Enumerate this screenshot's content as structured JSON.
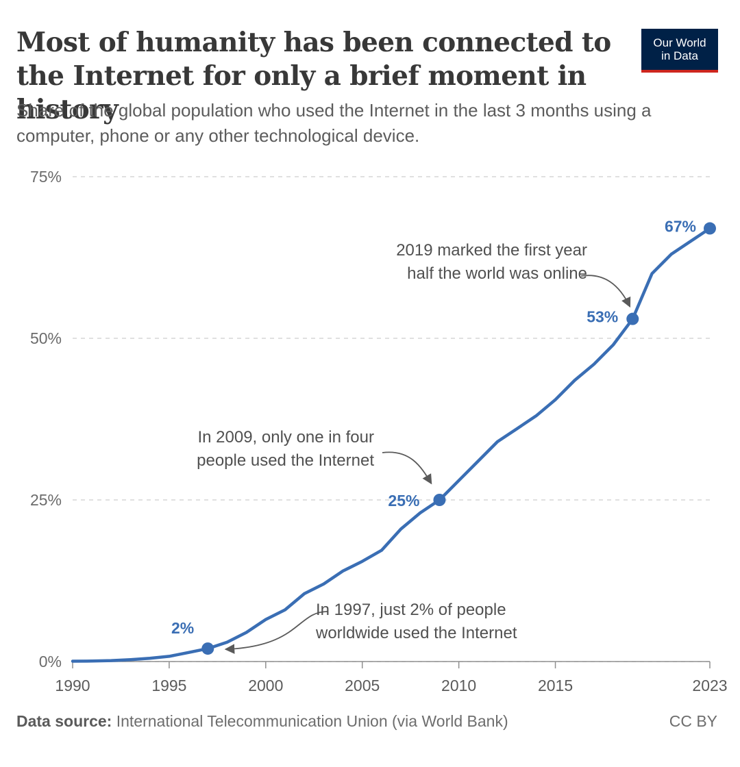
{
  "header": {
    "title": "Most of humanity has been connected to the Internet for only a brief moment in history",
    "subtitle": "Share of the global population who used the Internet in the last 3 months using a computer, phone or any other technological device.",
    "logo_line1": "Our World",
    "logo_line2": "in Data"
  },
  "footer": {
    "source_label": "Data source:",
    "source_text": "International Telecommunication Union (via World Bank)",
    "license": "CC BY"
  },
  "colors": {
    "series": "#3a6eb4",
    "annotation": "#5a5a5a",
    "grid": "#d5d5d5",
    "logo_bg": "#002147",
    "logo_accent": "#ce261e"
  },
  "chart_data": {
    "type": "line",
    "title": "Most of humanity has been connected to the Internet for only a brief moment in history",
    "subtitle": "Share of the global population who used the Internet in the last 3 months using a computer, phone or any other technological device.",
    "xlabel": "",
    "ylabel": "",
    "xlim": [
      1990,
      2023
    ],
    "ylim": [
      0,
      75
    ],
    "grid": "horizontal dashed",
    "legend": "none",
    "y_ticks": [
      {
        "value": 0,
        "label": "0%"
      },
      {
        "value": 25,
        "label": "25%"
      },
      {
        "value": 50,
        "label": "50%"
      },
      {
        "value": 75,
        "label": "75%"
      }
    ],
    "x_ticks": [
      {
        "value": 1990,
        "label": "1990"
      },
      {
        "value": 1995,
        "label": "1995"
      },
      {
        "value": 2000,
        "label": "2000"
      },
      {
        "value": 2005,
        "label": "2005"
      },
      {
        "value": 2010,
        "label": "2010"
      },
      {
        "value": 2015,
        "label": "2015"
      },
      {
        "value": 2023,
        "label": "2023"
      }
    ],
    "series": [
      {
        "x": [
          1990,
          1991,
          1992,
          1993,
          1994,
          1995,
          1996,
          1997,
          1998,
          1999,
          2000,
          2001,
          2002,
          2003,
          2004,
          2005,
          2006,
          2007,
          2008,
          2009,
          2010,
          2011,
          2012,
          2013,
          2014,
          2015,
          2016,
          2017,
          2018,
          2019,
          2020,
          2021,
          2022,
          2023
        ],
        "y": [
          0.05,
          0.07,
          0.15,
          0.3,
          0.5,
          0.8,
          1.4,
          2,
          3,
          4.5,
          6.5,
          8,
          10.5,
          12,
          14,
          15.5,
          17.2,
          20.5,
          23,
          25,
          28,
          31,
          34,
          36,
          38,
          40.5,
          43.5,
          46,
          49,
          53,
          60,
          63,
          65,
          67
        ]
      }
    ],
    "highlights": [
      {
        "x": 1997,
        "y": 2,
        "label": "2%"
      },
      {
        "x": 2009,
        "y": 25,
        "label": "25%"
      },
      {
        "x": 2019,
        "y": 53,
        "label": "53%"
      },
      {
        "x": 2023,
        "y": 67,
        "label": "67%"
      }
    ],
    "annotations": [
      {
        "x": 1997,
        "y": 2,
        "lines": [
          "In 1997, just 2% of people",
          "worldwide used the Internet"
        ]
      },
      {
        "x": 2009,
        "y": 25,
        "lines": [
          "In 2009, only one in four",
          "people used the Internet"
        ]
      },
      {
        "x": 2019,
        "y": 53,
        "lines": [
          "2019 marked the first year",
          "half the world was online"
        ]
      }
    ]
  }
}
